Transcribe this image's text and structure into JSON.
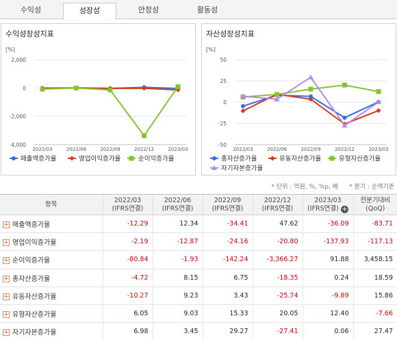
{
  "tabs": [
    {
      "label": "수익성",
      "active": false
    },
    {
      "label": "성장성",
      "active": true
    },
    {
      "label": "안정성",
      "active": false
    },
    {
      "label": "활동성",
      "active": false
    }
  ],
  "left_panel": {
    "title": "수익성장성지표",
    "unit": "[%]"
  },
  "right_panel": {
    "title": "자산성장성지표",
    "unit": "[%]"
  },
  "notes": {
    "unit": "* 단위 : 억원, %, %p, 배",
    "period": "* 분기 : 순액기준"
  },
  "table": {
    "headers": [
      "항목",
      "2022/03 (IFRS연결)",
      "2022/06 (IFRS연결)",
      "2022/09 (IFRS연결)",
      "2022/12 (IFRS연결)",
      "2023/03 (IFRS연결)",
      "전분기대비 (QoQ)"
    ],
    "header_lines": [
      [
        "항목"
      ],
      [
        "2022/03",
        "(IFRS연결)"
      ],
      [
        "2022/06",
        "(IFRS연결)"
      ],
      [
        "2022/09",
        "(IFRS연결)"
      ],
      [
        "2022/12",
        "(IFRS연결)"
      ],
      [
        "2023/03",
        "(IFRS연결)"
      ],
      [
        "전분기대비",
        "(QoQ)"
      ]
    ],
    "rows": [
      {
        "label": "매출액증가율",
        "values": [
          "-12.29",
          "12.34",
          "-34.41",
          "47.62",
          "-36.09",
          "-83.71"
        ]
      },
      {
        "label": "영업이익증가율",
        "values": [
          "-2.19",
          "-12.87",
          "-24.16",
          "-20.80",
          "-137.93",
          "-117.13"
        ]
      },
      {
        "label": "순이익증가율",
        "values": [
          "-80.84",
          "-1.93",
          "-142.24",
          "-3,366.27",
          "91.88",
          "3,458.15"
        ]
      },
      {
        "label": "총자산증가율",
        "values": [
          "-4.72",
          "8.15",
          "6.75",
          "-18.35",
          "0.24",
          "18.59"
        ]
      },
      {
        "label": "유동자산증가율",
        "values": [
          "-10.27",
          "9.23",
          "3.43",
          "-25.74",
          "-9.89",
          "15.86"
        ]
      },
      {
        "label": "유형자산증가율",
        "values": [
          "6.05",
          "9.03",
          "15.33",
          "20.05",
          "12.40",
          "-7.66"
        ]
      },
      {
        "label": "자기자본증가율",
        "values": [
          "6.98",
          "3.45",
          "29.27",
          "-27.41",
          "0.06",
          "27.47"
        ]
      }
    ]
  },
  "chart_data": [
    {
      "type": "line",
      "title": "수익성장성지표",
      "ylabel": "[%]",
      "x": [
        "2022/03",
        "2022/06",
        "2022/09",
        "2022/12",
        "2023/03"
      ],
      "ylim": [
        -4000,
        2000
      ],
      "yticks": [
        2000,
        0,
        -2000,
        -4000
      ],
      "ytick_labels": [
        "2,000",
        "0",
        "-2,000",
        "-4,000"
      ],
      "legend": "bottom",
      "series": [
        {
          "name": "매출액증가율",
          "values": [
            -12.29,
            12.34,
            -34.41,
            47.62,
            -36.09
          ],
          "color": "#2f6fe0",
          "marker": "circle"
        },
        {
          "name": "영업이익증가율",
          "values": [
            -2.19,
            -12.87,
            -24.16,
            -20.8,
            -137.93
          ],
          "color": "#d23a1c",
          "marker": "diamond"
        },
        {
          "name": "순이익증가율",
          "values": [
            -80.84,
            -1.93,
            -142.24,
            -3366.27,
            91.88
          ],
          "color": "#86c232",
          "marker": "square"
        }
      ]
    },
    {
      "type": "line",
      "title": "자산성장성지표",
      "ylabel": "[%]",
      "x": [
        "2022/03",
        "2022/06",
        "2022/09",
        "2022/12",
        "2023/03"
      ],
      "ylim": [
        -50,
        50
      ],
      "yticks": [
        50,
        25,
        0,
        -25,
        -50
      ],
      "ytick_labels": [
        "50",
        "25",
        "0",
        "-25",
        "-50"
      ],
      "legend": "bottom",
      "series": [
        {
          "name": "총자산증가율",
          "values": [
            -4.72,
            8.15,
            6.75,
            -18.35,
            0.24
          ],
          "color": "#2f6fe0",
          "marker": "circle"
        },
        {
          "name": "유동자산증가율",
          "values": [
            -10.27,
            9.23,
            3.43,
            -25.74,
            -9.89
          ],
          "color": "#d23a1c",
          "marker": "diamond"
        },
        {
          "name": "유형자산증가율",
          "values": [
            6.05,
            9.03,
            15.33,
            20.05,
            12.4
          ],
          "color": "#86c232",
          "marker": "square"
        },
        {
          "name": "자기자본증가율",
          "values": [
            6.98,
            3.45,
            29.27,
            -27.41,
            0.06
          ],
          "color": "#b78ae8",
          "marker": "triangle"
        }
      ]
    }
  ]
}
